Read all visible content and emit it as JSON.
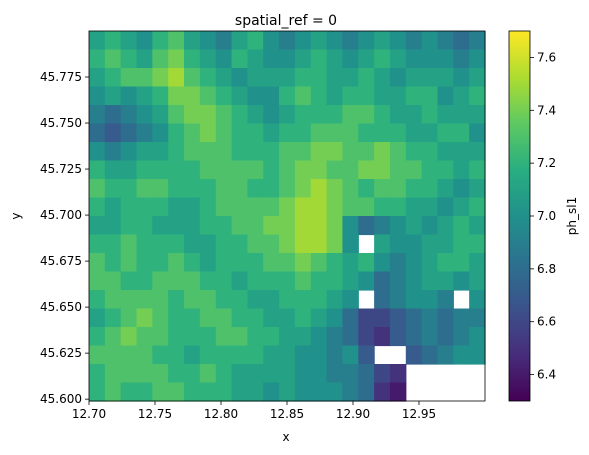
{
  "chart_data": {
    "type": "heatmap",
    "title": "spatial_ref = 0",
    "xlabel": "x",
    "ylabel": "y",
    "colorbar_label": "ph_sl1",
    "colormap": "viridis",
    "xlim": [
      12.7,
      13.0
    ],
    "ylim": [
      45.599,
      45.8
    ],
    "clim": [
      6.3,
      7.7
    ],
    "xticks": [
      12.7,
      12.75,
      12.8,
      12.85,
      12.9,
      12.95
    ],
    "xtick_labels": [
      "12.70",
      "12.75",
      "12.80",
      "12.85",
      "12.90",
      "12.95"
    ],
    "yticks": [
      45.6,
      45.625,
      45.65,
      45.675,
      45.7,
      45.725,
      45.75,
      45.775
    ],
    "ytick_labels": [
      "45.600",
      "45.625",
      "45.650",
      "45.675",
      "45.700",
      "45.725",
      "45.750",
      "45.775"
    ],
    "cticks": [
      6.4,
      6.6,
      6.8,
      7.0,
      7.2,
      7.4,
      7.6
    ],
    "ctick_labels": [
      "6.4",
      "6.6",
      "6.8",
      "7.0",
      "7.2",
      "7.4",
      "7.6"
    ],
    "grid": {
      "cols": 25,
      "rows": 20,
      "values": [
        [
          7.1,
          7.2,
          7.1,
          7.0,
          7.2,
          7.3,
          7.1,
          7.0,
          6.9,
          7.1,
          7.2,
          7.0,
          6.9,
          7.0,
          7.1,
          7.0,
          6.9,
          7.0,
          7.1,
          7.0,
          6.9,
          7.0,
          6.9,
          6.8,
          6.9
        ],
        [
          7.2,
          7.3,
          7.2,
          7.1,
          7.3,
          7.4,
          7.2,
          7.1,
          7.0,
          7.2,
          7.1,
          7.0,
          7.0,
          7.1,
          7.2,
          7.1,
          7.0,
          7.1,
          7.2,
          7.1,
          7.0,
          7.0,
          7.0,
          6.9,
          7.0
        ],
        [
          7.1,
          7.2,
          7.3,
          7.3,
          7.4,
          7.5,
          7.3,
          7.2,
          7.1,
          7.0,
          7.1,
          7.1,
          7.1,
          7.2,
          7.2,
          7.1,
          7.1,
          7.2,
          7.1,
          7.0,
          7.1,
          7.1,
          7.1,
          7.0,
          7.1
        ],
        [
          7.0,
          7.1,
          7.0,
          7.1,
          7.2,
          7.4,
          7.4,
          7.3,
          7.2,
          7.1,
          7.0,
          7.0,
          7.2,
          7.3,
          7.2,
          7.1,
          7.2,
          7.2,
          7.1,
          7.1,
          7.2,
          7.2,
          7.0,
          7.1,
          7.2
        ],
        [
          6.9,
          6.8,
          6.9,
          7.0,
          7.1,
          7.3,
          7.4,
          7.4,
          7.3,
          7.2,
          7.1,
          7.0,
          7.1,
          7.2,
          7.2,
          7.2,
          7.3,
          7.3,
          7.2,
          7.1,
          7.1,
          7.2,
          7.1,
          7.1,
          7.1
        ],
        [
          6.8,
          6.7,
          6.8,
          6.9,
          7.0,
          7.2,
          7.3,
          7.4,
          7.3,
          7.2,
          7.2,
          7.1,
          7.2,
          7.2,
          7.3,
          7.3,
          7.3,
          7.2,
          7.2,
          7.2,
          7.1,
          7.1,
          7.2,
          7.2,
          7.0
        ],
        [
          7.0,
          6.9,
          7.0,
          7.1,
          7.1,
          7.2,
          7.3,
          7.3,
          7.3,
          7.2,
          7.2,
          7.2,
          7.3,
          7.3,
          7.4,
          7.4,
          7.3,
          7.3,
          7.4,
          7.3,
          7.2,
          7.2,
          7.1,
          7.1,
          7.1
        ],
        [
          7.2,
          7.1,
          7.1,
          7.2,
          7.2,
          7.2,
          7.2,
          7.3,
          7.3,
          7.3,
          7.3,
          7.2,
          7.3,
          7.4,
          7.4,
          7.3,
          7.3,
          7.4,
          7.4,
          7.3,
          7.3,
          7.2,
          7.2,
          7.1,
          7.2
        ],
        [
          7.3,
          7.2,
          7.2,
          7.3,
          7.3,
          7.2,
          7.2,
          7.2,
          7.3,
          7.3,
          7.2,
          7.2,
          7.3,
          7.4,
          7.5,
          7.4,
          7.3,
          7.2,
          7.3,
          7.3,
          7.2,
          7.2,
          7.1,
          7.0,
          7.1
        ],
        [
          7.2,
          7.1,
          7.2,
          7.2,
          7.2,
          7.1,
          7.1,
          7.2,
          7.3,
          7.3,
          7.3,
          7.3,
          7.4,
          7.5,
          7.5,
          7.4,
          7.3,
          7.3,
          7.2,
          7.2,
          7.1,
          7.1,
          7.0,
          7.1,
          7.2
        ],
        [
          7.1,
          7.1,
          7.2,
          7.2,
          7.1,
          7.1,
          7.1,
          7.2,
          7.2,
          7.3,
          7.3,
          7.4,
          7.4,
          7.5,
          7.5,
          7.4,
          7.0,
          6.8,
          6.9,
          7.0,
          7.1,
          7.0,
          7.1,
          7.2,
          7.1
        ],
        [
          7.2,
          7.2,
          7.3,
          7.2,
          7.2,
          7.2,
          7.1,
          7.1,
          7.2,
          7.2,
          7.3,
          7.3,
          7.4,
          7.5,
          7.5,
          7.4,
          7.0,
          null,
          7.1,
          7.0,
          7.0,
          7.1,
          7.1,
          7.2,
          7.2
        ],
        [
          7.3,
          7.2,
          7.3,
          7.2,
          7.2,
          7.3,
          7.2,
          7.1,
          7.2,
          7.2,
          7.2,
          7.3,
          7.3,
          7.4,
          7.3,
          7.2,
          7.1,
          7.2,
          7.0,
          6.9,
          7.0,
          7.1,
          7.2,
          7.2,
          7.1
        ],
        [
          7.3,
          7.3,
          7.2,
          7.2,
          7.3,
          7.3,
          7.3,
          7.2,
          7.2,
          7.1,
          7.2,
          7.2,
          7.2,
          7.3,
          7.2,
          7.2,
          7.1,
          7.0,
          6.8,
          6.9,
          7.0,
          7.1,
          7.1,
          7.0,
          7.1
        ],
        [
          7.2,
          7.3,
          7.3,
          7.3,
          7.3,
          7.2,
          7.3,
          7.3,
          7.2,
          7.2,
          7.1,
          7.1,
          7.2,
          7.2,
          7.2,
          7.1,
          7.0,
          null,
          6.8,
          6.9,
          7.0,
          7.0,
          6.9,
          null,
          7.0
        ],
        [
          7.1,
          7.2,
          7.3,
          7.4,
          7.3,
          7.2,
          7.2,
          7.3,
          7.3,
          7.2,
          7.2,
          7.1,
          7.1,
          7.2,
          7.1,
          7.0,
          6.8,
          6.6,
          6.6,
          6.7,
          6.8,
          6.9,
          6.8,
          6.9,
          6.9
        ],
        [
          7.2,
          7.3,
          7.4,
          7.3,
          7.3,
          7.2,
          7.2,
          7.2,
          7.3,
          7.3,
          7.2,
          7.2,
          7.1,
          7.1,
          7.0,
          6.9,
          6.8,
          6.6,
          6.5,
          6.7,
          6.8,
          6.9,
          6.8,
          6.9,
          7.0
        ],
        [
          7.3,
          7.3,
          7.3,
          7.3,
          7.2,
          7.2,
          7.1,
          7.2,
          7.2,
          7.2,
          7.2,
          7.1,
          7.1,
          7.0,
          7.0,
          6.9,
          7.0,
          6.7,
          null,
          null,
          6.7,
          6.8,
          6.9,
          7.0,
          7.0
        ],
        [
          7.2,
          7.3,
          7.3,
          7.3,
          7.3,
          7.2,
          7.2,
          7.3,
          7.2,
          7.1,
          7.1,
          7.1,
          7.1,
          7.0,
          7.0,
          6.9,
          6.9,
          6.8,
          6.6,
          6.5,
          null,
          null,
          null,
          null,
          null
        ],
        [
          7.2,
          7.3,
          7.2,
          7.2,
          7.3,
          7.3,
          7.2,
          7.2,
          7.2,
          7.1,
          7.1,
          7.0,
          7.1,
          7.0,
          7.0,
          7.0,
          6.9,
          6.8,
          6.5,
          6.4,
          null,
          null,
          null,
          null,
          null
        ]
      ]
    }
  }
}
